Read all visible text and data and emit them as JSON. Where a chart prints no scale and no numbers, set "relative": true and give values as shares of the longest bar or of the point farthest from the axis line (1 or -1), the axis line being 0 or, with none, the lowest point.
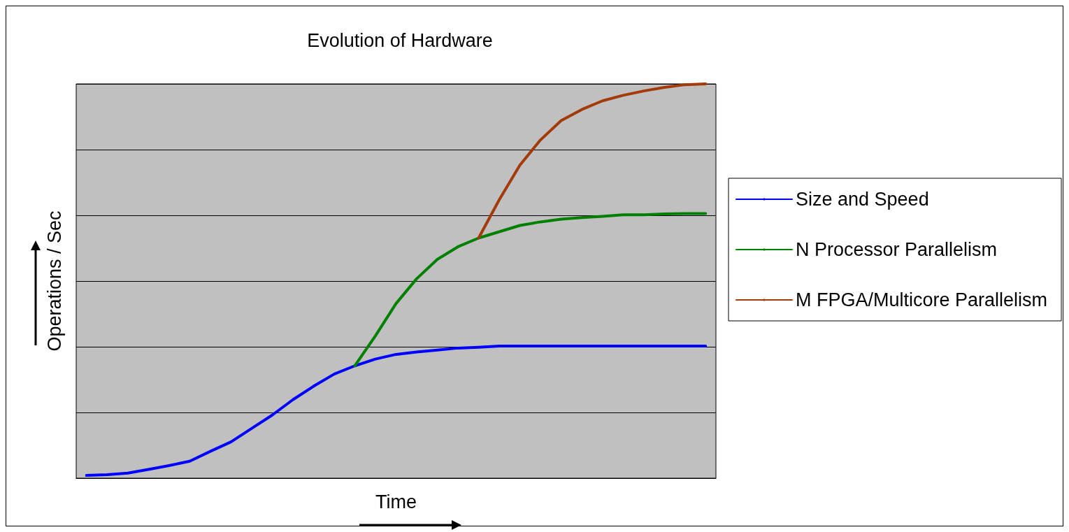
{
  "chart_data": {
    "type": "line",
    "title": "Evolution of Hardware",
    "xlabel": "Time",
    "ylabel": "Operations / Sec",
    "relative": true,
    "grid": "y",
    "legend": "right",
    "marker": "none",
    "line_style": "solid",
    "categories": [
      null,
      null,
      null,
      null,
      null,
      null,
      null,
      null,
      null,
      null,
      null,
      null,
      null,
      null,
      null,
      null,
      null,
      null,
      null,
      null,
      null,
      null,
      null,
      null,
      null,
      null,
      null,
      null,
      null,
      null,
      null
    ],
    "series": [
      {
        "name": "Size and Speed",
        "color": "#0000ff",
        "values": [
          0.007,
          0.009,
          0.013,
          0.022,
          0.032,
          0.043,
          0.068,
          0.092,
          0.126,
          0.16,
          0.199,
          0.233,
          0.264,
          0.285,
          0.302,
          0.314,
          0.32,
          0.325,
          0.33,
          0.332,
          0.335,
          0.335,
          0.335,
          0.335,
          0.335,
          0.335,
          0.335,
          0.335,
          0.335,
          0.335,
          0.335
        ]
      },
      {
        "name": "N Processor Parallelism",
        "color": "#008000",
        "values": [
          null,
          null,
          null,
          null,
          null,
          null,
          null,
          null,
          null,
          null,
          null,
          null,
          null,
          0.285,
          0.361,
          0.443,
          0.506,
          0.555,
          0.587,
          0.609,
          0.625,
          0.641,
          0.65,
          0.657,
          0.661,
          0.664,
          0.668,
          0.668,
          0.67,
          0.671,
          0.671
        ]
      },
      {
        "name": "M FPGA/Multicore Parallelism",
        "color": "#a33a0a",
        "values": [
          null,
          null,
          null,
          null,
          null,
          null,
          null,
          null,
          null,
          null,
          null,
          null,
          null,
          null,
          null,
          null,
          null,
          null,
          null,
          0.609,
          0.706,
          0.794,
          0.858,
          0.907,
          0.935,
          0.957,
          0.971,
          0.982,
          0.991,
          0.998,
          1
        ]
      }
    ]
  }
}
